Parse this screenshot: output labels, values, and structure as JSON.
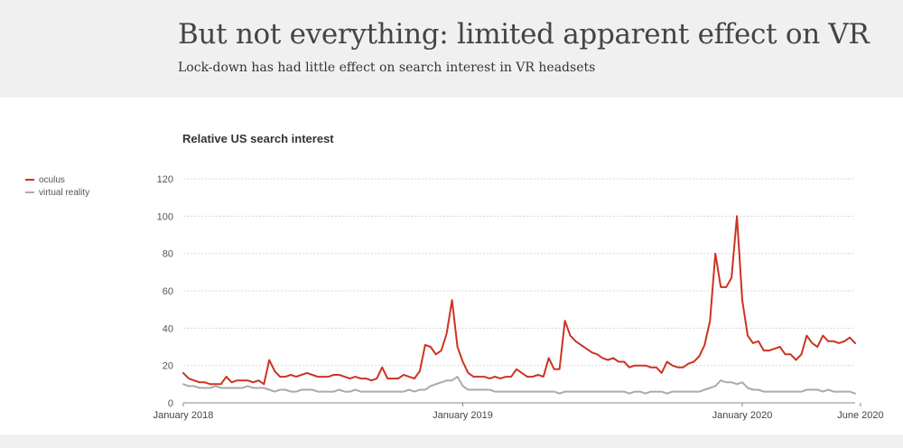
{
  "header": {
    "title": "But not everything: limited apparent effect on VR",
    "subtitle": "Lock-down has had little effect on search interest in VR headsets"
  },
  "chart_data": {
    "type": "line",
    "title": "Relative US search interest",
    "xlabel": "",
    "ylabel": "",
    "ylim": [
      0,
      120
    ],
    "yticks": [
      0,
      20,
      40,
      60,
      80,
      100,
      120
    ],
    "xticks": [
      "January 2018",
      "January 2019",
      "January 2020",
      "June 2020"
    ],
    "xtick_positions": [
      0,
      52,
      104,
      126
    ],
    "grid": true,
    "legend_placement": "left",
    "series": [
      {
        "name": "oculus",
        "color": "#cc3322",
        "values": [
          16,
          13,
          12,
          11,
          11,
          10,
          10,
          10,
          14,
          11,
          12,
          12,
          12,
          11,
          12,
          10,
          23,
          17,
          14,
          14,
          15,
          14,
          15,
          16,
          15,
          14,
          14,
          14,
          15,
          15,
          14,
          13,
          14,
          13,
          13,
          12,
          13,
          19,
          13,
          13,
          13,
          15,
          14,
          13,
          17,
          31,
          30,
          26,
          28,
          37,
          55,
          30,
          22,
          16,
          14,
          14,
          14,
          13,
          14,
          13,
          14,
          14,
          18,
          16,
          14,
          14,
          15,
          14,
          24,
          18,
          18,
          44,
          36,
          33,
          31,
          29,
          27,
          26,
          24,
          23,
          24,
          22,
          22,
          19,
          20,
          20,
          20,
          19,
          19,
          16,
          22,
          20,
          19,
          19,
          21,
          22,
          25,
          31,
          44,
          80,
          62,
          62,
          67,
          100,
          55,
          36,
          32,
          33,
          28,
          28,
          29,
          30,
          26,
          26,
          23,
          26,
          36,
          32,
          30,
          36,
          33,
          33,
          32,
          33,
          35,
          32
        ]
      },
      {
        "name": "virtual reality",
        "color": "#aaaaaa",
        "values": [
          10,
          9,
          9,
          8,
          8,
          8,
          9,
          8,
          8,
          8,
          8,
          8,
          9,
          8,
          8,
          8,
          7,
          6,
          7,
          7,
          6,
          6,
          7,
          7,
          7,
          6,
          6,
          6,
          6,
          7,
          6,
          6,
          7,
          6,
          6,
          6,
          6,
          6,
          6,
          6,
          6,
          6,
          7,
          6,
          7,
          7,
          9,
          10,
          11,
          12,
          12,
          14,
          9,
          7,
          7,
          7,
          7,
          7,
          6,
          6,
          6,
          6,
          6,
          6,
          6,
          6,
          6,
          6,
          6,
          6,
          5,
          6,
          6,
          6,
          6,
          6,
          6,
          6,
          6,
          6,
          6,
          6,
          6,
          5,
          6,
          6,
          5,
          6,
          6,
          6,
          5,
          6,
          6,
          6,
          6,
          6,
          6,
          7,
          8,
          9,
          12,
          11,
          11,
          10,
          11,
          8,
          7,
          7,
          6,
          6,
          6,
          6,
          6,
          6,
          6,
          6,
          7,
          7,
          7,
          6,
          7,
          6,
          6,
          6,
          6,
          5
        ]
      }
    ]
  }
}
